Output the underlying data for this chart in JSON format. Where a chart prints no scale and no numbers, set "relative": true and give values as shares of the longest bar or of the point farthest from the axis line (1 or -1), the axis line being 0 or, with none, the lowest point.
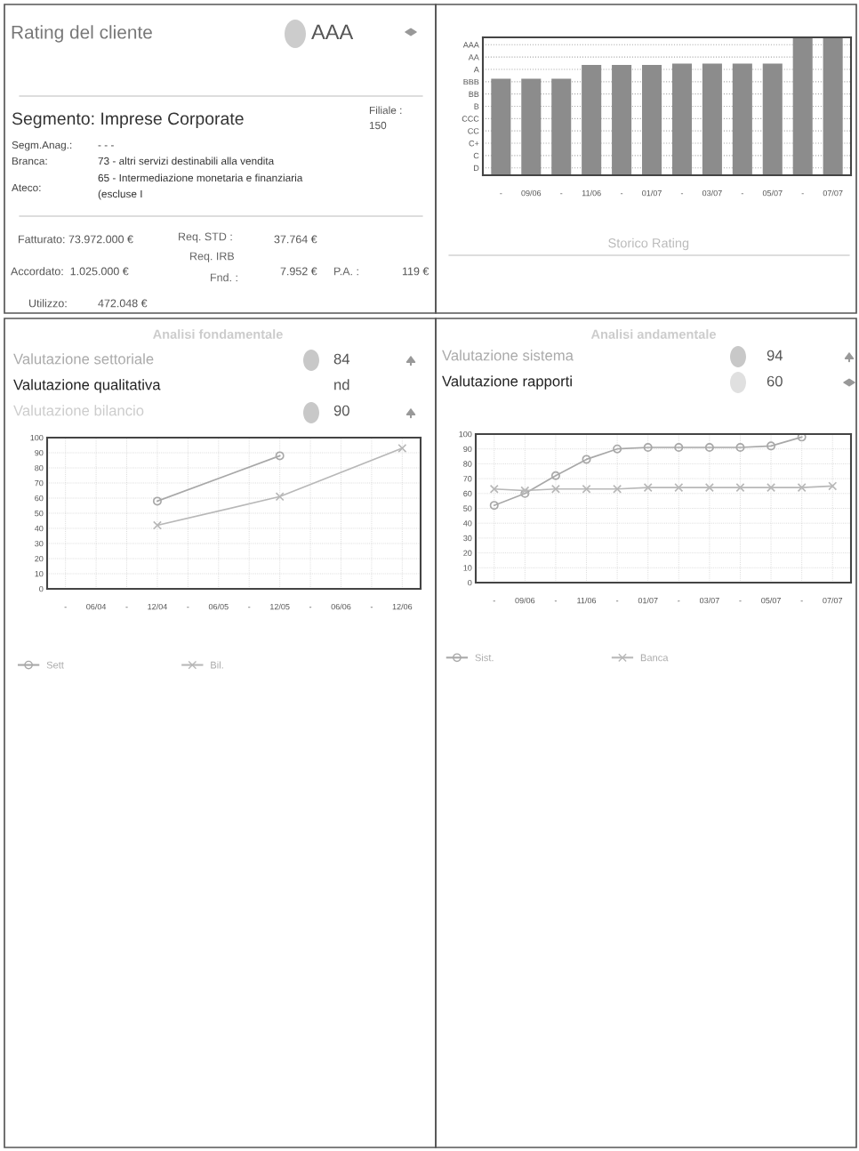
{
  "chart_data": [
    {
      "type": "other",
      "title": "Rating del cliente",
      "annotations": [
        "AAA",
        "Segmento: Imprese Corporate",
        "Filiale :",
        "150",
        "Segm.Anag.:",
        "- - -",
        "Branca:",
        "73 - altri servizi destinabili alla vendita",
        "Ateco:",
        "65 - Intermediazione monetaria e finanziaria",
        "(escluse I",
        "Fatturato: 73.972.000 €",
        "Req. STD :",
        "37.764 €",
        "Req. IRB",
        "Fnd. :",
        "7.952 €",
        "P.A. :",
        "119 €",
        "Accordato:  1.025.000 €",
        "Utilizzo:",
        "472.048 €"
      ]
    },
    {
      "type": "bar",
      "title": "Storico Rating",
      "categories": [
        "-",
        "09/06",
        "-",
        "11/06",
        "-",
        "01/07",
        "-",
        "03/07",
        "-",
        "05/07",
        "-",
        "07/07"
      ],
      "values": [
        0.7,
        0.7,
        0.7,
        0.8,
        0.8,
        0.8,
        0.81,
        0.81,
        0.81,
        0.81,
        1,
        1
      ],
      "color": "#8c8c8c",
      "relative": true,
      "annotations": [
        "D",
        "C",
        "C+",
        "CC",
        "CCC",
        "B",
        "BB",
        "BBB",
        "A",
        "AA",
        "AAA"
      ],
      "grid": "y"
    },
    {
      "type": "line",
      "title": "Analisi fondamentale",
      "annotations": [
        "Valutazione settoriale",
        "84",
        "Valutazione qualitativa",
        "nd",
        "Valutazione bilancio",
        "90"
      ],
      "categories": [
        "-",
        "06/04",
        "-",
        "12/04",
        "-",
        "06/05",
        "-",
        "12/05",
        "-",
        "06/06",
        "-",
        "12/06"
      ],
      "series": [
        {
          "name": "Sett",
          "color": "#a8a8a8",
          "marker": "circle",
          "values": [
            null,
            null,
            null,
            58,
            null,
            null,
            null,
            88,
            null,
            null,
            null,
            null
          ]
        },
        {
          "name": "Bil.",
          "color": "#b8b8b8",
          "marker": "cross",
          "values": [
            null,
            null,
            null,
            42,
            null,
            null,
            null,
            61,
            null,
            null,
            null,
            93
          ]
        }
      ],
      "ylim": [
        0,
        100
      ],
      "yticks": [
        0,
        10,
        20,
        30,
        40,
        50,
        60,
        70,
        80,
        90,
        100
      ],
      "grid": true,
      "legend": "bottom"
    },
    {
      "type": "line",
      "title": "Analisi andamentale",
      "annotations": [
        "Valutazione sistema",
        "94",
        "Valutazione rapporti",
        "60"
      ],
      "categories": [
        "-",
        "09/06",
        "-",
        "11/06",
        "-",
        "01/07",
        "-",
        "03/07",
        "-",
        "05/07",
        "-",
        "07/07"
      ],
      "series": [
        {
          "name": "Sist.",
          "color": "#a8a8a8",
          "marker": "circle",
          "values": [
            52,
            60,
            72,
            83,
            90,
            91,
            91,
            91,
            91,
            92,
            98,
            null
          ]
        },
        {
          "name": "Banca",
          "color": "#b8b8b8",
          "marker": "cross",
          "values": [
            63,
            62,
            63,
            63,
            63,
            64,
            64,
            64,
            64,
            64,
            64,
            65
          ]
        }
      ],
      "ylim": [
        0,
        100
      ],
      "yticks": [
        0,
        10,
        20,
        30,
        40,
        50,
        60,
        70,
        80,
        90,
        100
      ],
      "grid": true,
      "legend": "bottom"
    }
  ]
}
